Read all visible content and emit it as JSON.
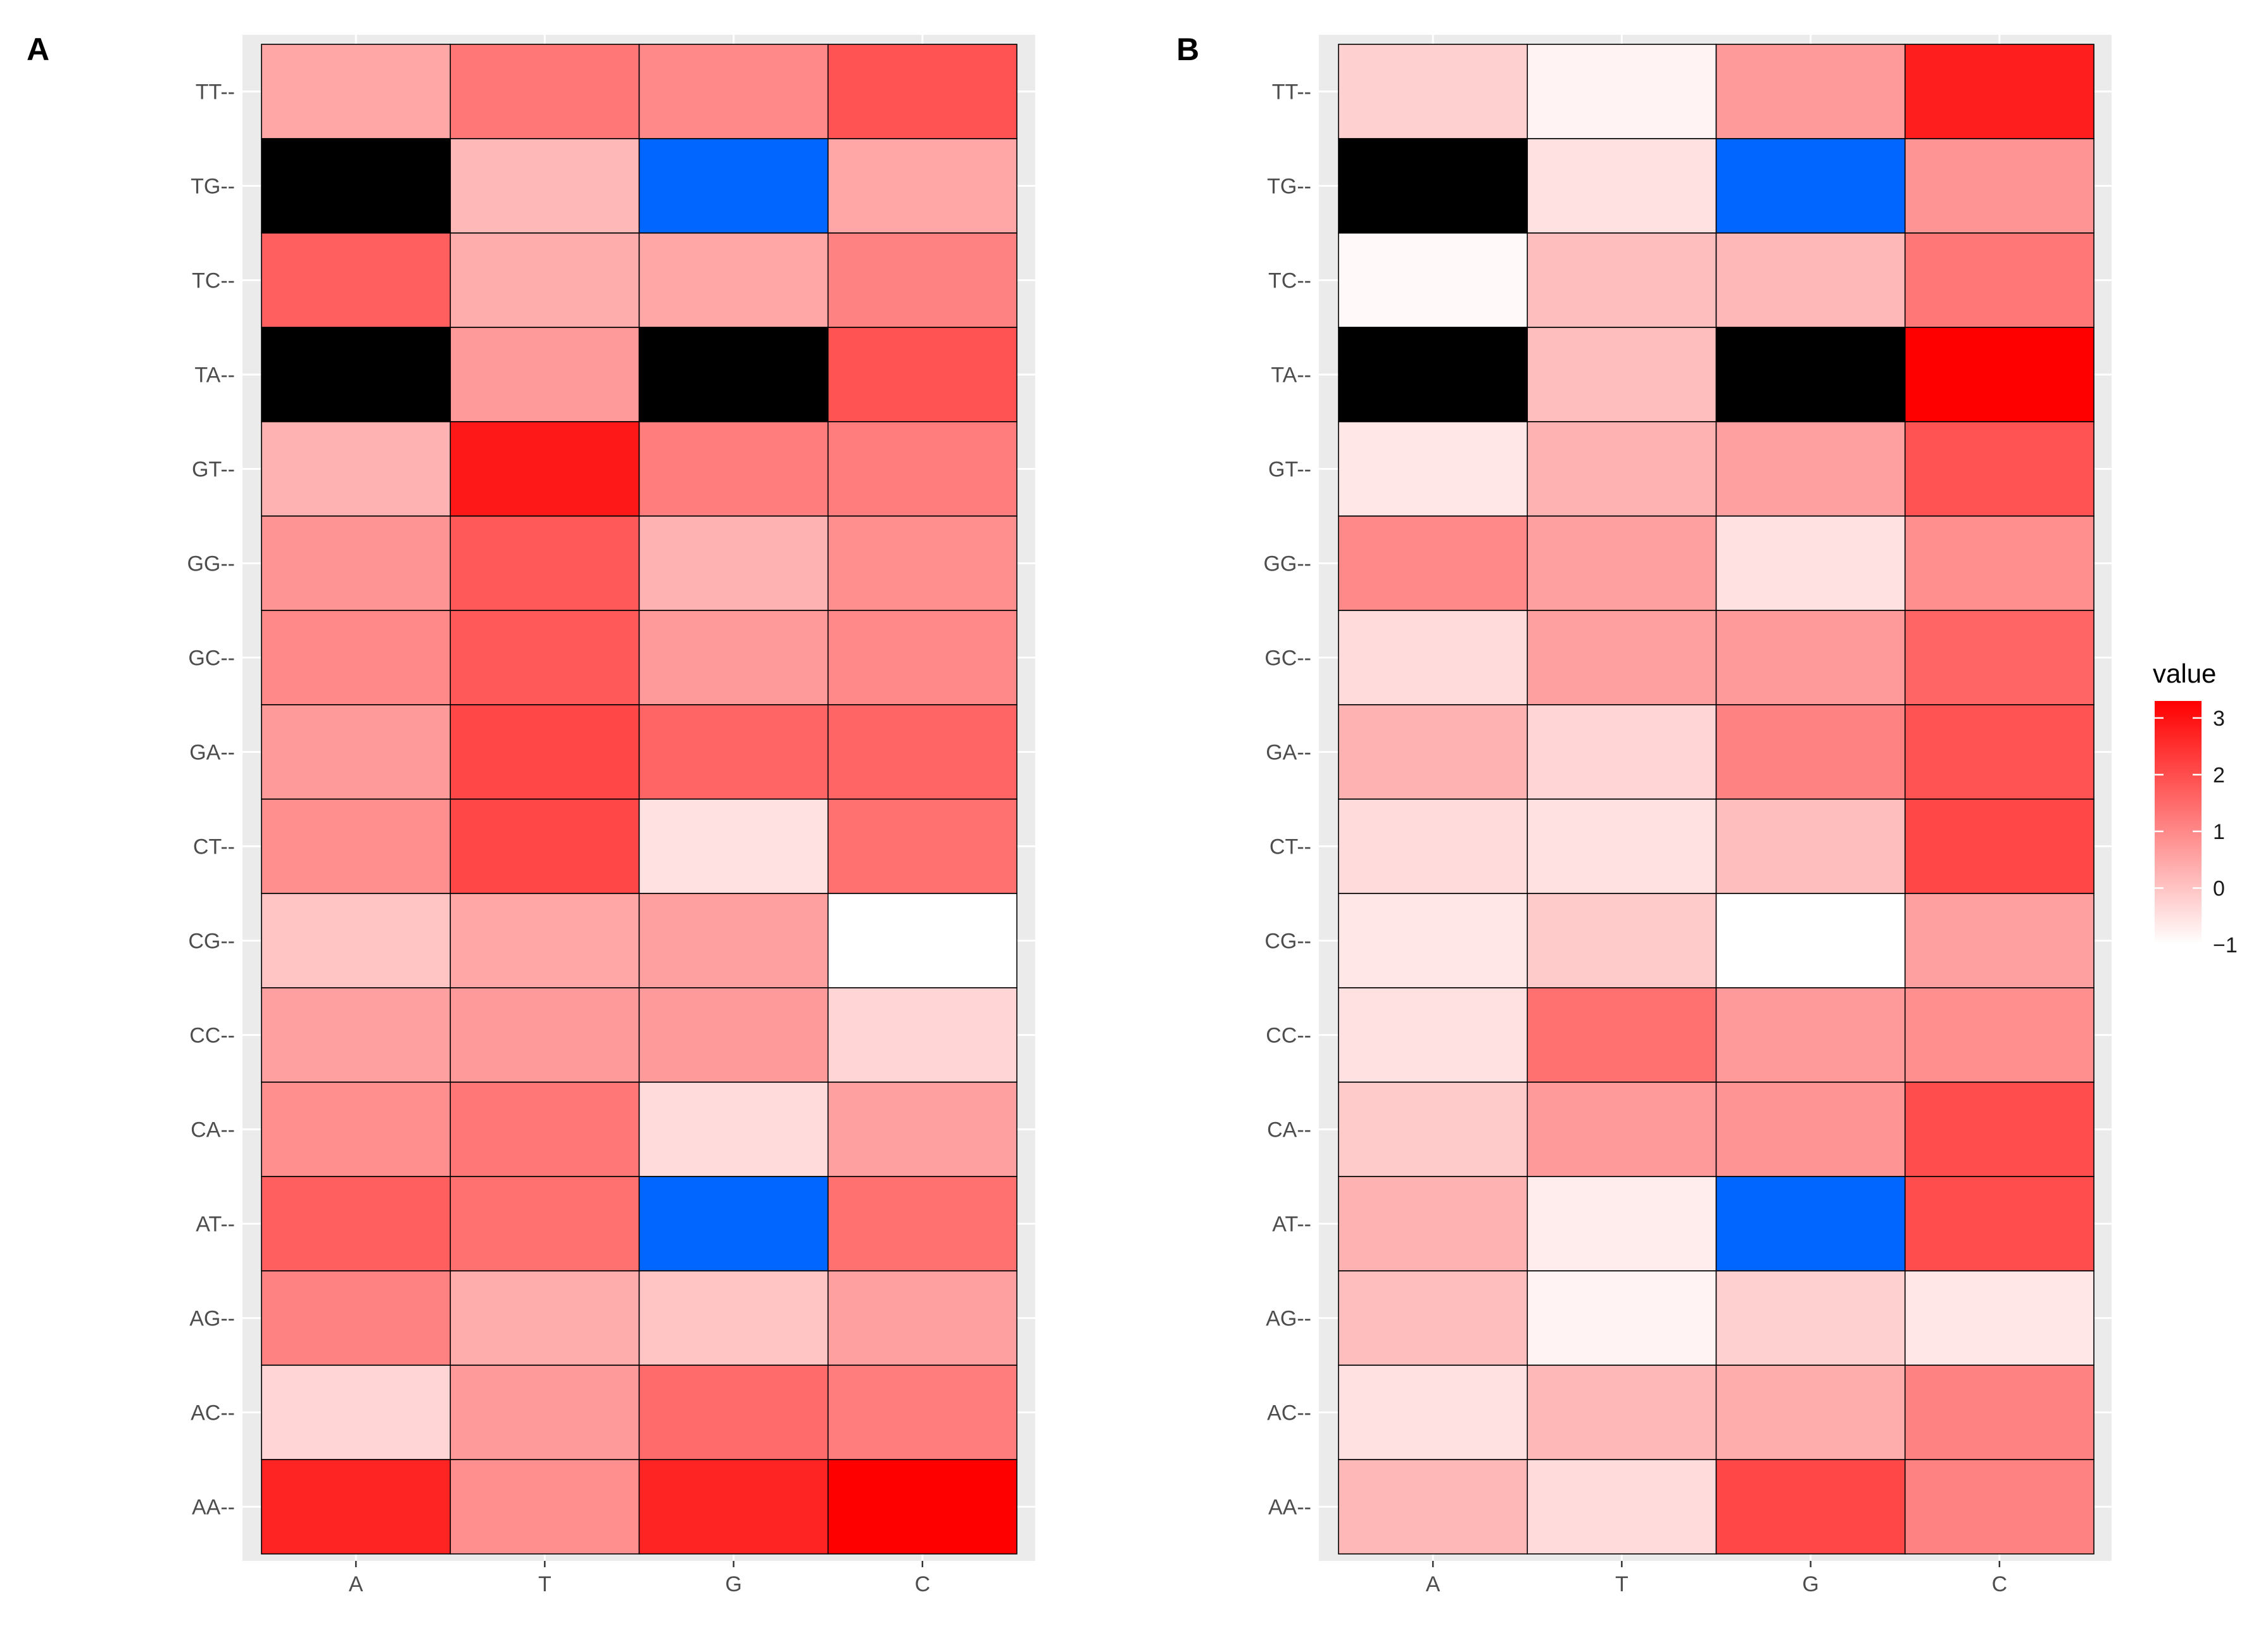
{
  "chart_data": {
    "type": "heatmap",
    "legend": {
      "title": "value",
      "breaks": [
        3,
        2,
        1,
        0,
        -1
      ],
      "break_labels": [
        "3",
        "2",
        "1",
        "0",
        "−1"
      ],
      "range": [
        -1,
        3.3
      ],
      "low_color": "#ffffff",
      "high_color": "#ff0000",
      "placement": "right"
    },
    "special_colors": {
      "blue_cell": "#0066ff",
      "black_cell": "#000000"
    },
    "panels": [
      {
        "label": "A",
        "x_categories": [
          "A",
          "T",
          "G",
          "C"
        ],
        "y_categories": [
          "TT",
          "TG",
          "TC",
          "TA",
          "GT",
          "GG",
          "GC",
          "GA",
          "CT",
          "CG",
          "CC",
          "CA",
          "AT",
          "AG",
          "AC",
          "AA"
        ],
        "y_tick_suffix": "--",
        "rows": [
          {
            "row": "TT",
            "values": [
              0.5,
              1.3,
              1.0,
              1.9
            ]
          },
          {
            "row": "TG",
            "values": [
              "black",
              0.2,
              "blue",
              0.5
            ]
          },
          {
            "row": "TC",
            "values": [
              1.7,
              0.4,
              0.5,
              1.1
            ]
          },
          {
            "row": "TA",
            "values": [
              "black",
              0.7,
              "black",
              1.9
            ]
          },
          {
            "row": "GT",
            "values": [
              0.3,
              2.9,
              1.2,
              1.2
            ]
          },
          {
            "row": "GG",
            "values": [
              0.8,
              1.8,
              0.3,
              0.9
            ]
          },
          {
            "row": "GC",
            "values": [
              1.0,
              1.8,
              0.7,
              1.0
            ]
          },
          {
            "row": "GA",
            "values": [
              0.7,
              2.1,
              1.6,
              1.6
            ]
          },
          {
            "row": "CT",
            "values": [
              0.9,
              2.1,
              -0.5,
              1.4
            ]
          },
          {
            "row": "CG",
            "values": [
              0.0,
              0.5,
              0.6,
              -1.0
            ]
          },
          {
            "row": "CC",
            "values": [
              0.6,
              0.7,
              0.7,
              -0.3
            ]
          },
          {
            "row": "CA",
            "values": [
              0.9,
              1.3,
              -0.4,
              0.6
            ]
          },
          {
            "row": "AT",
            "values": [
              1.7,
              1.4,
              "blue",
              1.4
            ]
          },
          {
            "row": "AG",
            "values": [
              1.1,
              0.4,
              0.0,
              0.6
            ]
          },
          {
            "row": "AC",
            "values": [
              -0.3,
              0.7,
              1.5,
              1.2
            ]
          },
          {
            "row": "AA",
            "values": [
              2.7,
              0.9,
              2.7,
              3.3
            ]
          }
        ]
      },
      {
        "label": "B",
        "x_categories": [
          "A",
          "T",
          "G",
          "C"
        ],
        "y_categories": [
          "TT",
          "TG",
          "TC",
          "TA",
          "GT",
          "GG",
          "GC",
          "GA",
          "CT",
          "CG",
          "CC",
          "CA",
          "AT",
          "AG",
          "AC",
          "AA"
        ],
        "y_tick_suffix": "--",
        "rows": [
          {
            "row": "TT",
            "values": [
              -0.2,
              -0.8,
              0.7,
              2.8
            ]
          },
          {
            "row": "TG",
            "values": [
              "black",
              -0.5,
              "blue",
              0.8
            ]
          },
          {
            "row": "TC",
            "values": [
              -0.9,
              0.1,
              0.2,
              1.3
            ]
          },
          {
            "row": "TA",
            "values": [
              "black",
              0.1,
              "black",
              3.3
            ]
          },
          {
            "row": "GT",
            "values": [
              -0.6,
              0.3,
              0.6,
              1.9
            ]
          },
          {
            "row": "GG",
            "values": [
              1.0,
              0.6,
              -0.5,
              0.9
            ]
          },
          {
            "row": "GC",
            "values": [
              -0.4,
              0.6,
              0.7,
              1.6
            ]
          },
          {
            "row": "GA",
            "values": [
              0.3,
              -0.3,
              1.1,
              1.9
            ]
          },
          {
            "row": "CT",
            "values": [
              -0.4,
              -0.5,
              0.1,
              2.1
            ]
          },
          {
            "row": "CG",
            "values": [
              -0.6,
              -0.1,
              -1.0,
              0.6
            ]
          },
          {
            "row": "CC",
            "values": [
              -0.5,
              1.4,
              0.7,
              0.9
            ]
          },
          {
            "row": "CA",
            "values": [
              -0.1,
              0.7,
              0.8,
              2.0
            ]
          },
          {
            "row": "AT",
            "values": [
              0.3,
              -0.7,
              "blue",
              2.0
            ]
          },
          {
            "row": "AG",
            "values": [
              0.1,
              -0.8,
              -0.2,
              -0.6
            ]
          },
          {
            "row": "AC",
            "values": [
              -0.5,
              0.2,
              0.4,
              1.1
            ]
          },
          {
            "row": "AA",
            "values": [
              0.2,
              -0.4,
              2.1,
              1.1
            ]
          }
        ]
      }
    ]
  }
}
